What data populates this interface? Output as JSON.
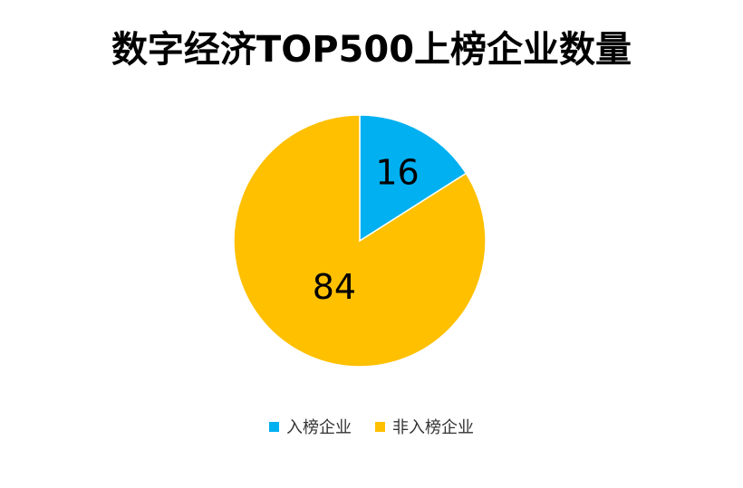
{
  "chart_data": {
    "type": "pie",
    "title": "数字经济TOP500上榜企业数量",
    "categories": [
      "入榜企业",
      "非入榜企业"
    ],
    "values": [
      16,
      84
    ],
    "colors": [
      "#00B0F0",
      "#FFC000"
    ],
    "data_labels": [
      "16",
      "84"
    ],
    "legend_position": "bottom"
  }
}
